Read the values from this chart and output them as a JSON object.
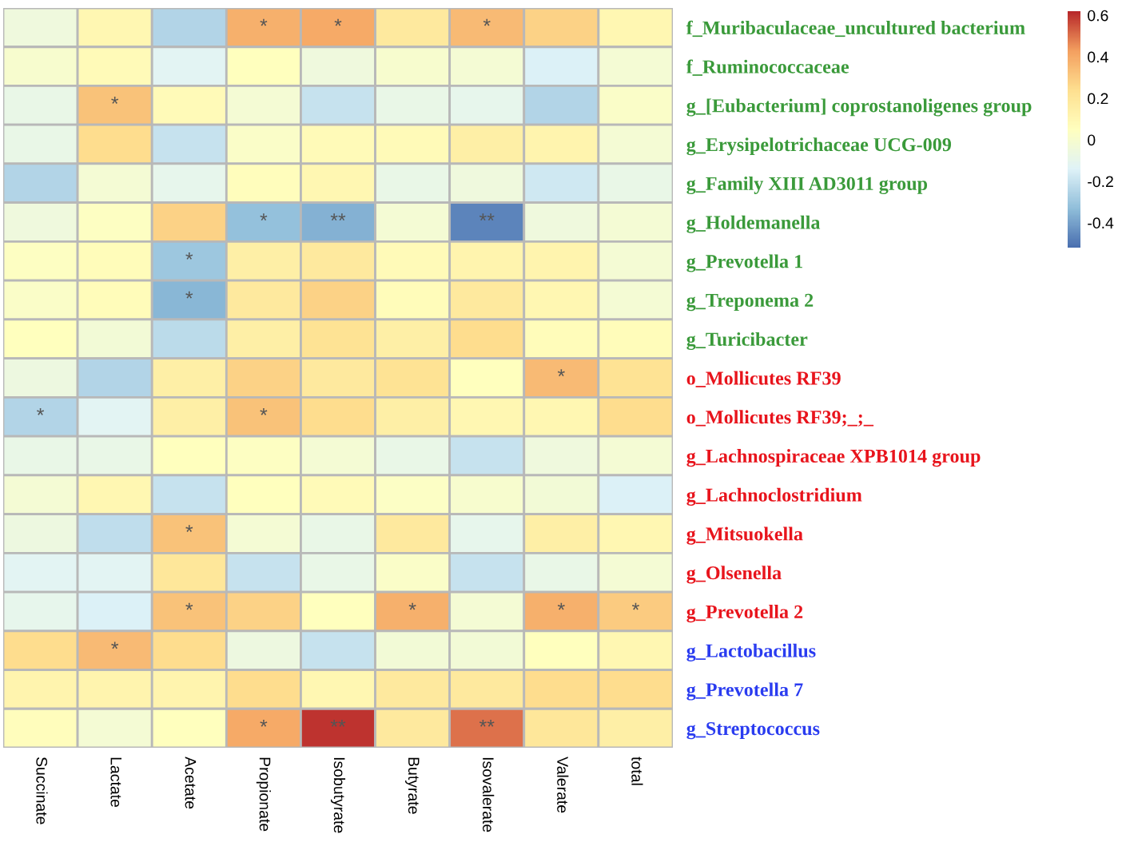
{
  "chart_data": {
    "type": "heatmap",
    "categories": [
      "Succinate",
      "Lactate",
      "Acetate",
      "Propionate",
      "Isobutyrate",
      "Butyrate",
      "Isovalerate",
      "Valerate",
      "total"
    ],
    "y_categories": [
      "f_Muribaculaceae_uncultured bacterium",
      "f_Ruminococcaceae",
      "g_[Eubacterium] coprostanoligenes group",
      "g_Erysipelotrichaceae UCG-009",
      "g_Family XIII AD3011 group",
      "g_Holdemanella",
      "g_Prevotella 1",
      "g_Treponema 2",
      "g_Turicibacter",
      "o_Mollicutes RF39",
      "o_Mollicutes RF39;_;_",
      "g_Lachnospiraceae XPB1014 group",
      "g_Lachnoclostridium",
      "g_Mitsuokella",
      "g_Olsenella",
      "g_Prevotella 2",
      "g_Lactobacillus",
      "g_Prevotella 7",
      "g_Streptococcus"
    ],
    "cells": [
      [
        -0.05,
        0.1,
        -0.25,
        0.38,
        0.4,
        0.18,
        0.35,
        0.28,
        0.1
      ],
      [
        0,
        0.08,
        -0.12,
        0.05,
        -0.05,
        0,
        -0.02,
        -0.15,
        -0.02
      ],
      [
        -0.08,
        0.33,
        0.08,
        -0.02,
        -0.2,
        -0.08,
        -0.1,
        -0.25,
        0.02
      ],
      [
        -0.08,
        0.25,
        -0.2,
        0.02,
        0.08,
        0.08,
        0.15,
        0.12,
        -0.02
      ],
      [
        -0.25,
        -0.02,
        -0.1,
        0.06,
        0.1,
        -0.08,
        -0.05,
        -0.18,
        -0.08
      ],
      [
        -0.05,
        0.04,
        0.28,
        -0.32,
        -0.36,
        -0.02,
        -0.47,
        -0.05,
        -0.02
      ],
      [
        0.04,
        0.07,
        -0.3,
        0.15,
        0.18,
        0.08,
        0.12,
        0.12,
        -0.02
      ],
      [
        0.02,
        0.07,
        -0.35,
        0.18,
        0.28,
        0.07,
        0.18,
        0.1,
        -0.02
      ],
      [
        0.05,
        -0.03,
        -0.23,
        0.15,
        0.22,
        0.15,
        0.25,
        0.07,
        0.07
      ],
      [
        -0.06,
        -0.25,
        0.15,
        0.28,
        0.18,
        0.22,
        0.05,
        0.35,
        0.22
      ],
      [
        -0.25,
        -0.12,
        0.15,
        0.33,
        0.25,
        0.15,
        0.1,
        0.1,
        0.25
      ],
      [
        -0.08,
        -0.08,
        0.05,
        0.04,
        -0.02,
        -0.08,
        -0.2,
        -0.05,
        -0.02
      ],
      [
        -0.02,
        0.1,
        -0.2,
        0.05,
        0.08,
        0.03,
        0,
        -0.03,
        -0.15
      ],
      [
        -0.06,
        -0.22,
        0.33,
        -0.02,
        -0.08,
        0.18,
        -0.1,
        0.15,
        0.1
      ],
      [
        -0.12,
        -0.12,
        0.2,
        -0.2,
        -0.08,
        0.02,
        -0.2,
        -0.08,
        -0.02
      ],
      [
        -0.1,
        -0.15,
        0.33,
        0.28,
        0.05,
        0.38,
        -0.02,
        0.38,
        0.3
      ],
      [
        0.25,
        0.35,
        0.25,
        -0.06,
        -0.2,
        -0.03,
        -0.03,
        0.05,
        0.1
      ],
      [
        0.12,
        0.12,
        0.12,
        0.25,
        0.1,
        0.18,
        0.18,
        0.25,
        0.25
      ],
      [
        0.06,
        -0.02,
        0.05,
        0.4,
        0.6,
        0.18,
        0.5,
        0.2,
        0.15
      ]
    ],
    "cell_labels": [
      [
        null,
        null,
        null,
        "*",
        "*",
        null,
        "*",
        null,
        null
      ],
      [
        null,
        null,
        null,
        null,
        null,
        null,
        null,
        null,
        null
      ],
      [
        null,
        "*",
        null,
        null,
        null,
        null,
        null,
        null,
        null
      ],
      [
        null,
        null,
        null,
        null,
        null,
        null,
        null,
        null,
        null
      ],
      [
        null,
        null,
        null,
        null,
        null,
        null,
        null,
        null,
        null
      ],
      [
        null,
        null,
        null,
        "*",
        "**",
        null,
        "**",
        null,
        null
      ],
      [
        null,
        null,
        "*",
        null,
        null,
        null,
        null,
        null,
        null
      ],
      [
        null,
        null,
        "*",
        null,
        null,
        null,
        null,
        null,
        null
      ],
      [
        null,
        null,
        null,
        null,
        null,
        null,
        null,
        null,
        null
      ],
      [
        null,
        null,
        null,
        null,
        null,
        null,
        null,
        "*",
        null
      ],
      [
        "*",
        null,
        null,
        "*",
        null,
        null,
        null,
        null,
        null
      ],
      [
        null,
        null,
        null,
        null,
        null,
        null,
        null,
        null,
        null
      ],
      [
        null,
        null,
        null,
        null,
        null,
        null,
        null,
        null,
        null
      ],
      [
        null,
        null,
        "*",
        null,
        null,
        null,
        null,
        null,
        null
      ],
      [
        null,
        null,
        null,
        null,
        null,
        null,
        null,
        null,
        null
      ],
      [
        null,
        null,
        "*",
        null,
        null,
        "*",
        null,
        "*",
        "*"
      ],
      [
        null,
        "*",
        null,
        null,
        null,
        null,
        null,
        null,
        null
      ],
      [
        null,
        null,
        null,
        null,
        null,
        null,
        null,
        null,
        null
      ],
      [
        null,
        null,
        null,
        "*",
        "**",
        null,
        "**",
        null,
        null
      ]
    ],
    "clim": [
      -0.52,
      0.62
    ],
    "cticks": [
      -0.4,
      -0.2,
      0,
      0.2,
      0.4,
      0.6
    ]
  }
}
